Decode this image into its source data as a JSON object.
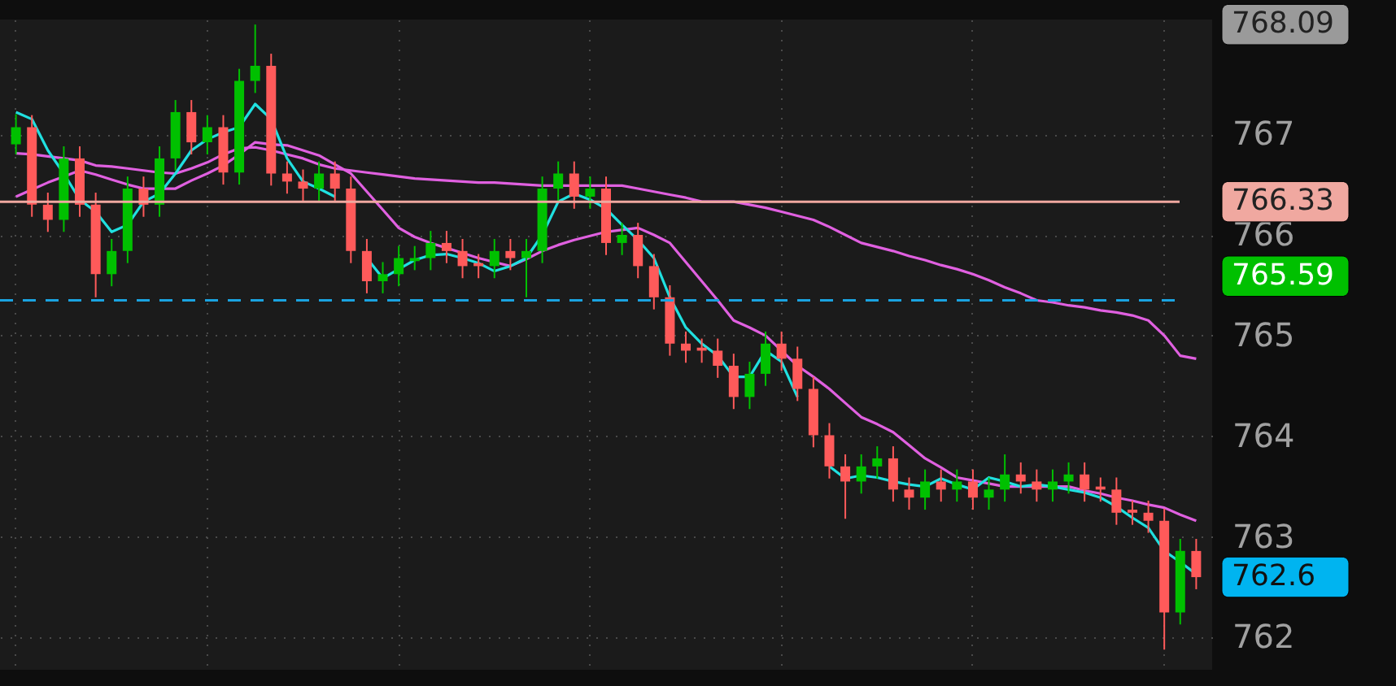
{
  "chart_data": {
    "type": "candlestick",
    "categories": [
      null,
      null,
      null,
      null,
      null,
      null,
      null,
      null,
      null,
      null,
      null,
      null,
      null,
      null,
      null,
      null,
      null,
      null,
      null,
      null,
      null,
      null,
      null,
      null,
      null,
      null,
      null,
      null,
      null,
      null,
      null,
      null,
      null,
      null,
      null,
      null,
      null,
      null,
      null,
      null,
      null,
      null,
      null,
      null,
      null,
      null,
      null,
      null,
      null,
      null,
      null,
      null,
      null,
      null,
      null,
      null,
      null,
      null,
      null,
      null,
      null,
      null,
      null,
      null,
      null,
      null,
      null,
      null,
      null,
      null,
      null,
      null,
      null,
      null,
      null
    ],
    "ohlc": [
      [
        766.9,
        767.2,
        766.8,
        767.07
      ],
      [
        767.07,
        767.19,
        766.18,
        766.3
      ],
      [
        766.3,
        766.42,
        766.03,
        766.15
      ],
      [
        766.15,
        766.88,
        766.03,
        766.76
      ],
      [
        766.76,
        766.88,
        766.18,
        766.3
      ],
      [
        766.3,
        766.42,
        765.38,
        765.61
      ],
      [
        765.61,
        765.96,
        765.49,
        765.84
      ],
      [
        765.84,
        766.58,
        765.72,
        766.46
      ],
      [
        766.46,
        766.58,
        766.18,
        766.3
      ],
      [
        766.3,
        766.88,
        766.18,
        766.76
      ],
      [
        766.76,
        767.34,
        766.64,
        767.22
      ],
      [
        767.22,
        767.34,
        766.8,
        766.92
      ],
      [
        766.92,
        767.19,
        766.8,
        767.07
      ],
      [
        767.07,
        767.19,
        766.5,
        766.62
      ],
      [
        766.62,
        767.65,
        766.5,
        767.53
      ],
      [
        767.53,
        768.09,
        767.41,
        767.68
      ],
      [
        767.68,
        767.8,
        766.49,
        766.61
      ],
      [
        766.61,
        766.73,
        766.41,
        766.53
      ],
      [
        766.53,
        766.65,
        766.34,
        766.46
      ],
      [
        766.46,
        766.73,
        766.34,
        766.61
      ],
      [
        766.61,
        766.73,
        766.34,
        766.46
      ],
      [
        766.46,
        766.58,
        765.72,
        765.84
      ],
      [
        765.84,
        765.96,
        765.42,
        765.54
      ],
      [
        765.54,
        765.73,
        765.42,
        765.61
      ],
      [
        765.61,
        765.89,
        765.49,
        765.77
      ],
      [
        765.74,
        765.89,
        765.65,
        765.77
      ],
      [
        765.77,
        766.04,
        765.65,
        765.92
      ],
      [
        765.92,
        766.04,
        765.72,
        765.84
      ],
      [
        765.84,
        765.96,
        765.57,
        765.69
      ],
      [
        765.72,
        765.81,
        765.57,
        765.69
      ],
      [
        765.69,
        765.96,
        765.57,
        765.84
      ],
      [
        765.84,
        765.96,
        765.65,
        765.77
      ],
      [
        765.77,
        765.96,
        765.38,
        765.84
      ],
      [
        765.84,
        766.58,
        765.72,
        766.46
      ],
      [
        766.46,
        766.73,
        766.34,
        766.61
      ],
      [
        766.61,
        766.73,
        766.26,
        766.38
      ],
      [
        766.38,
        766.58,
        766.26,
        766.46
      ],
      [
        766.46,
        766.58,
        765.8,
        765.92
      ],
      [
        765.92,
        766.12,
        765.8,
        766.0
      ],
      [
        766.0,
        766.12,
        765.57,
        765.69
      ],
      [
        765.69,
        765.81,
        765.26,
        765.38
      ],
      [
        765.38,
        765.5,
        764.8,
        764.92
      ],
      [
        764.92,
        765.04,
        764.73,
        764.85
      ],
      [
        764.88,
        764.97,
        764.73,
        764.85
      ],
      [
        764.85,
        764.97,
        764.58,
        764.7
      ],
      [
        764.7,
        764.82,
        764.27,
        764.39
      ],
      [
        764.39,
        764.74,
        764.27,
        764.62
      ],
      [
        764.62,
        765.04,
        764.5,
        764.92
      ],
      [
        764.92,
        765.04,
        764.65,
        764.77
      ],
      [
        764.77,
        764.89,
        764.35,
        764.47
      ],
      [
        764.47,
        764.59,
        763.89,
        764.01
      ],
      [
        764.01,
        764.13,
        763.58,
        763.7
      ],
      [
        763.7,
        763.82,
        763.18,
        763.55
      ],
      [
        763.55,
        763.82,
        763.43,
        763.7
      ],
      [
        763.7,
        763.9,
        763.58,
        763.78
      ],
      [
        763.78,
        763.9,
        763.35,
        763.47
      ],
      [
        763.47,
        763.59,
        763.27,
        763.39
      ],
      [
        763.39,
        763.67,
        763.27,
        763.55
      ],
      [
        763.55,
        763.67,
        763.35,
        763.47
      ],
      [
        763.47,
        763.67,
        763.35,
        763.55
      ],
      [
        763.55,
        763.67,
        763.27,
        763.39
      ],
      [
        763.39,
        763.59,
        763.27,
        763.47
      ],
      [
        763.47,
        763.82,
        763.35,
        763.62
      ],
      [
        763.62,
        763.74,
        763.43,
        763.55
      ],
      [
        763.55,
        763.67,
        763.35,
        763.47
      ],
      [
        763.47,
        763.67,
        763.35,
        763.55
      ],
      [
        763.55,
        763.74,
        763.43,
        763.62
      ],
      [
        763.62,
        763.74,
        763.35,
        763.47
      ],
      [
        763.5,
        763.59,
        763.35,
        763.47
      ],
      [
        763.47,
        763.59,
        763.12,
        763.24
      ],
      [
        763.27,
        763.36,
        763.12,
        763.24
      ],
      [
        763.24,
        763.36,
        763.04,
        763.16
      ],
      [
        763.16,
        763.28,
        761.88,
        762.25
      ],
      [
        762.25,
        762.98,
        762.13,
        762.86
      ],
      [
        762.86,
        762.98,
        762.48,
        762.6
      ]
    ],
    "series": [
      {
        "type": "line",
        "color": "#e060e0",
        "values": [
          766.81,
          766.8,
          766.78,
          766.76,
          766.74,
          766.69,
          766.68,
          766.66,
          766.64,
          766.62,
          766.61,
          766.66,
          766.72,
          766.8,
          766.86,
          766.87,
          766.84,
          766.8,
          766.76,
          766.7,
          766.66,
          766.64,
          766.62,
          766.6,
          766.58,
          766.56,
          766.55,
          766.54,
          766.53,
          766.52,
          766.52,
          766.51,
          766.5,
          766.49,
          766.49,
          766.49,
          766.49,
          766.49,
          766.49,
          766.46,
          766.43,
          766.4,
          766.37,
          766.33,
          766.33,
          766.33,
          766.3,
          766.27,
          766.23,
          766.19,
          766.15,
          766.08,
          766.0,
          765.92,
          765.88,
          765.84,
          765.79,
          765.75,
          765.7,
          765.66,
          765.61,
          765.55,
          765.48,
          765.42,
          765.35,
          765.33,
          765.3,
          765.28,
          765.25,
          765.23,
          765.2,
          765.15,
          765.0,
          764.8,
          764.77
        ]
      },
      {
        "type": "line",
        "color": "#e060e0",
        "values": [
          766.38,
          766.45,
          766.52,
          766.58,
          766.64,
          766.6,
          766.55,
          766.5,
          766.46,
          766.46,
          766.46,
          766.54,
          766.61,
          766.69,
          766.8,
          766.92,
          766.9,
          766.89,
          766.84,
          766.79,
          766.7,
          766.61,
          766.43,
          766.25,
          766.07,
          765.98,
          765.92,
          765.87,
          765.82,
          765.77,
          765.73,
          765.69,
          765.76,
          765.84,
          765.9,
          765.95,
          765.99,
          766.03,
          766.05,
          766.07,
          766.0,
          765.92,
          765.73,
          765.54,
          765.35,
          765.15,
          765.08,
          765.0,
          764.85,
          764.7,
          764.59,
          764.47,
          764.33,
          764.19,
          764.12,
          764.04,
          763.91,
          763.78,
          763.69,
          763.59,
          763.56,
          763.53,
          763.5,
          763.5,
          763.5,
          763.5,
          763.5,
          763.46,
          763.43,
          763.39,
          763.36,
          763.32,
          763.29,
          763.22,
          763.16
        ]
      },
      {
        "type": "line",
        "color": "#20e0e0",
        "values": [
          767.22,
          767.15,
          766.84,
          766.61,
          766.35,
          766.23,
          766.03,
          766.1,
          766.33,
          766.41,
          766.61,
          766.84,
          766.95,
          767.02,
          767.07,
          767.3,
          767.15,
          766.76,
          766.53,
          766.46,
          766.38,
          null,
          765.77,
          765.57,
          765.66,
          765.75,
          765.8,
          765.81,
          765.77,
          765.72,
          765.64,
          765.69,
          765.77,
          766.0,
          766.33,
          766.41,
          766.35,
          766.26,
          766.1,
          765.95,
          765.77,
          765.38,
          765.08,
          764.92,
          764.8,
          764.59,
          764.59,
          764.85,
          764.74,
          764.39,
          null,
          763.7,
          763.58,
          763.61,
          763.59,
          763.55,
          763.52,
          763.5,
          763.58,
          763.52,
          763.47,
          763.59,
          763.55,
          763.5,
          763.52,
          763.5,
          763.47,
          763.44,
          763.39,
          763.3,
          763.19,
          763.09,
          762.86,
          762.75,
          762.63
        ]
      }
    ],
    "ylim": [
      761.68,
      768.14
    ],
    "yticks": [
      762,
      763,
      764,
      765,
      766,
      767
    ],
    "tick_labels": "y",
    "grid": true,
    "ref_lines": [
      {
        "axis": "y",
        "value": 766.33,
        "label": "766.33",
        "color": "#f0a8a0",
        "line_style": "solid"
      },
      {
        "axis": "y",
        "value": 765.35,
        "color": "#1aa3e0",
        "line_style": "dashed"
      }
    ],
    "annotations": [
      "768.09",
      "765.59",
      "762.6"
    ]
  }
}
